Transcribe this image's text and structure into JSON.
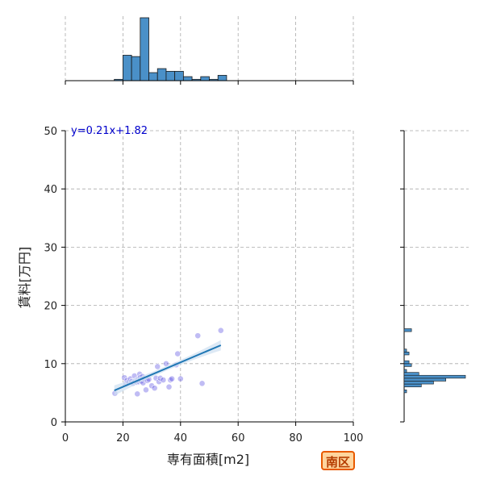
{
  "chart_data": {
    "type": "scatter",
    "xlabel": "専有面積[m2]",
    "ylabel": "賃料[万円]",
    "xlim": [
      0,
      100
    ],
    "ylim": [
      0,
      50
    ],
    "xticks": [
      0,
      20,
      40,
      60,
      80,
      100
    ],
    "yticks": [
      0,
      10,
      20,
      30,
      40,
      50
    ],
    "grid": true,
    "regression": {
      "equation": "y=0.21x+1.82",
      "slope": 0.21,
      "intercept": 1.82,
      "x_range": [
        17,
        54
      ]
    },
    "points": [
      {
        "x": 17.2,
        "y": 4.9
      },
      {
        "x": 20.5,
        "y": 7.6
      },
      {
        "x": 21.0,
        "y": 6.5
      },
      {
        "x": 21.4,
        "y": 7.1
      },
      {
        "x": 22.0,
        "y": 6.8
      },
      {
        "x": 22.6,
        "y": 7.4
      },
      {
        "x": 23.0,
        "y": 6.9
      },
      {
        "x": 23.5,
        "y": 6.6
      },
      {
        "x": 24.0,
        "y": 7.9
      },
      {
        "x": 24.2,
        "y": 7.0
      },
      {
        "x": 24.8,
        "y": 6.8
      },
      {
        "x": 25.0,
        "y": 4.8
      },
      {
        "x": 25.2,
        "y": 7.3
      },
      {
        "x": 25.5,
        "y": 6.9
      },
      {
        "x": 25.8,
        "y": 8.2
      },
      {
        "x": 26.0,
        "y": 7.6
      },
      {
        "x": 26.3,
        "y": 7.0
      },
      {
        "x": 26.8,
        "y": 7.8
      },
      {
        "x": 27.0,
        "y": 6.7
      },
      {
        "x": 27.4,
        "y": 7.4
      },
      {
        "x": 28.0,
        "y": 5.5
      },
      {
        "x": 28.5,
        "y": 7.1
      },
      {
        "x": 29.0,
        "y": 7.3
      },
      {
        "x": 30.0,
        "y": 6.2
      },
      {
        "x": 31.0,
        "y": 5.8
      },
      {
        "x": 31.5,
        "y": 7.5
      },
      {
        "x": 32.0,
        "y": 9.5
      },
      {
        "x": 32.5,
        "y": 6.9
      },
      {
        "x": 33.0,
        "y": 7.5
      },
      {
        "x": 34.0,
        "y": 7.2
      },
      {
        "x": 35.0,
        "y": 10.0
      },
      {
        "x": 36.0,
        "y": 6.0
      },
      {
        "x": 36.5,
        "y": 7.2
      },
      {
        "x": 37.0,
        "y": 7.4
      },
      {
        "x": 38.5,
        "y": 9.8
      },
      {
        "x": 39.0,
        "y": 11.7
      },
      {
        "x": 40.0,
        "y": 7.4
      },
      {
        "x": 46.0,
        "y": 14.8
      },
      {
        "x": 47.5,
        "y": 6.6
      },
      {
        "x": 54.0,
        "y": 15.7
      }
    ],
    "top_histogram": {
      "bin_width": 3,
      "bins": [
        {
          "start": 17,
          "count": 1
        },
        {
          "start": 20,
          "count": 19
        },
        {
          "start": 23,
          "count": 18
        },
        {
          "start": 26,
          "count": 47
        },
        {
          "start": 29,
          "count": 6
        },
        {
          "start": 32,
          "count": 9
        },
        {
          "start": 35,
          "count": 7
        },
        {
          "start": 38,
          "count": 7
        },
        {
          "start": 41,
          "count": 3
        },
        {
          "start": 44,
          "count": 1
        },
        {
          "start": 47,
          "count": 3
        },
        {
          "start": 50,
          "count": 1
        },
        {
          "start": 53,
          "count": 4
        }
      ]
    },
    "right_histogram": {
      "bin_width": 0.5,
      "bins": [
        {
          "start": 5.0,
          "count": 1
        },
        {
          "start": 6.0,
          "count": 7
        },
        {
          "start": 6.5,
          "count": 12
        },
        {
          "start": 7.0,
          "count": 17
        },
        {
          "start": 7.5,
          "count": 25
        },
        {
          "start": 8.0,
          "count": 6
        },
        {
          "start": 8.5,
          "count": 1
        },
        {
          "start": 9.5,
          "count": 3
        },
        {
          "start": 10.0,
          "count": 2
        },
        {
          "start": 11.5,
          "count": 2
        },
        {
          "start": 12.0,
          "count": 1
        },
        {
          "start": 15.5,
          "count": 3
        }
      ]
    }
  },
  "badge": {
    "label": "南区",
    "bg": "#ffd59e",
    "border": "#e85a00"
  },
  "colors": {
    "scatter": "#4a3fe0",
    "bar": "#4a90c8",
    "line": "#1f77b4",
    "band": "#cfe0f1",
    "grid": "#aaaaaa"
  }
}
